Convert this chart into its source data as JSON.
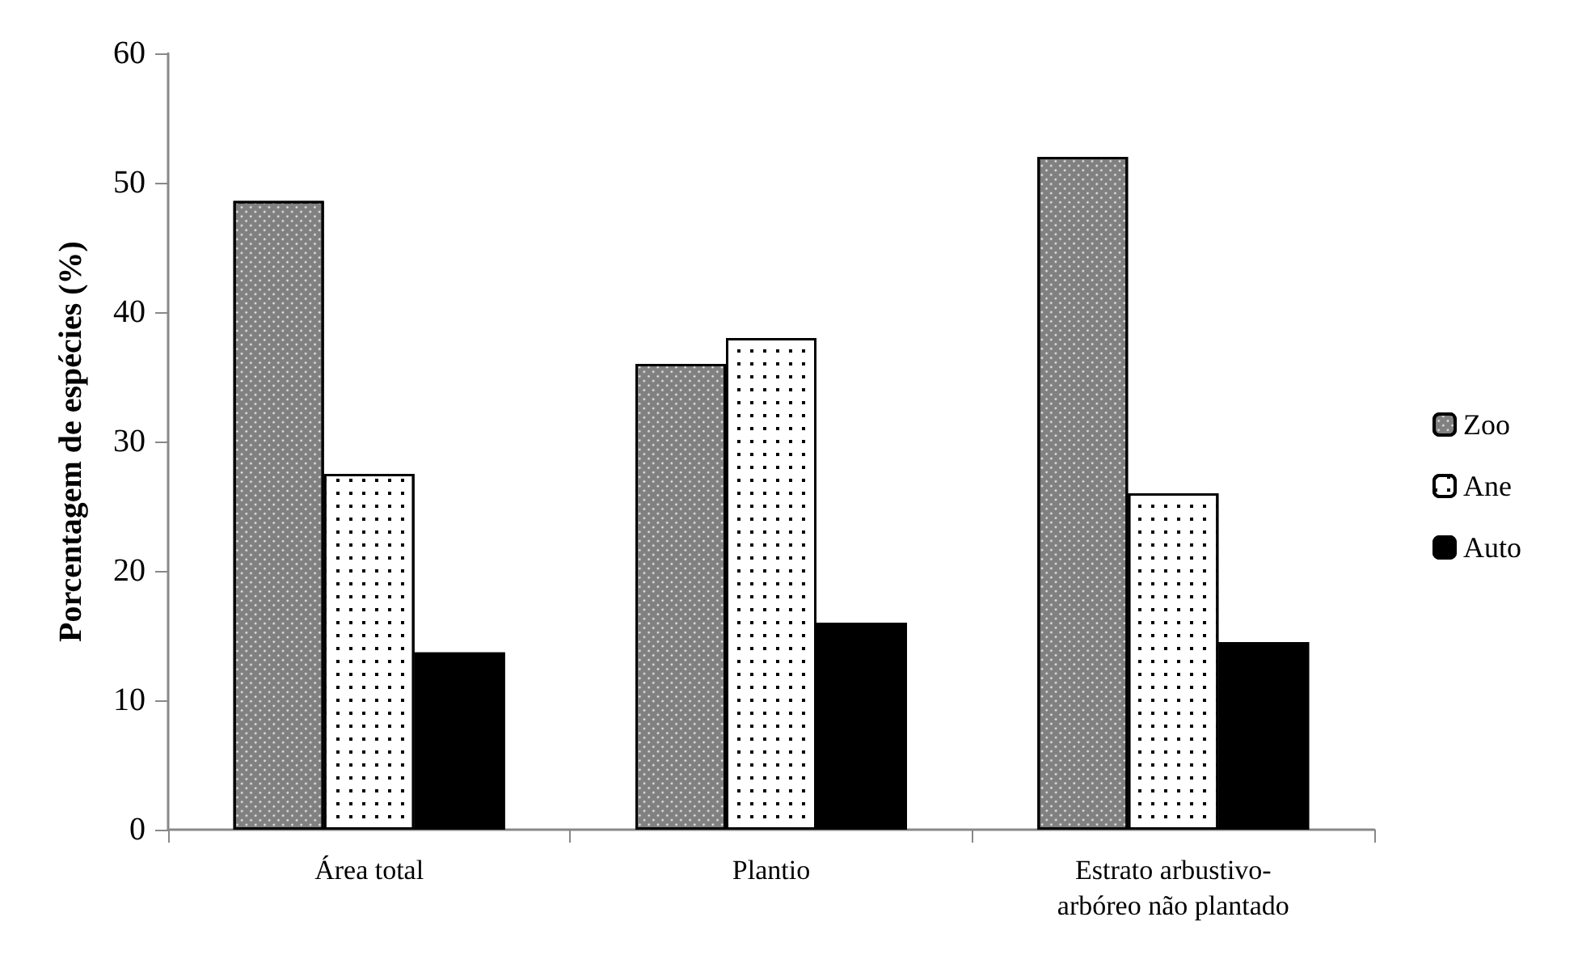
{
  "chart_data": {
    "type": "bar",
    "ylabel": "Porcentagem de espécies (%)",
    "categories": [
      "Área total",
      "Plantio",
      "Estrato arbustivo-arbóreo não plantado"
    ],
    "series": [
      {
        "name": "Zoo",
        "color": "#808080",
        "values": [
          48.6,
          36,
          52
        ]
      },
      {
        "name": "Ane",
        "color": "#ffffff",
        "values": [
          27.5,
          38,
          26
        ]
      },
      {
        "name": "Auto",
        "color": "#000000",
        "values": [
          13.7,
          16,
          14.5
        ]
      }
    ],
    "ylim": [
      0,
      60
    ],
    "yticks": [
      0,
      10,
      20,
      30,
      40,
      50,
      60
    ],
    "grid": false,
    "legend": "right"
  }
}
